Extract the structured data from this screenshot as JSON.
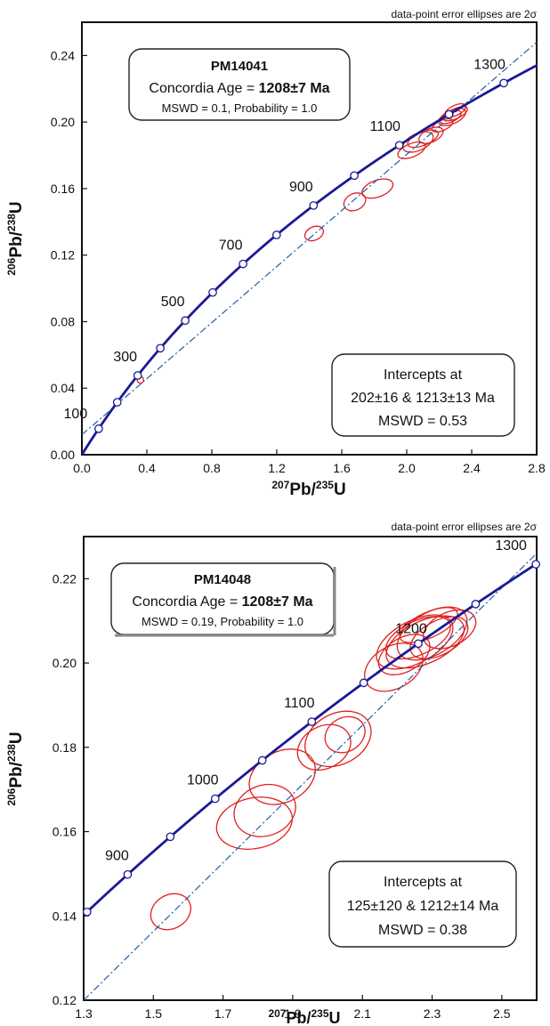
{
  "chart_data": [
    {
      "type": "concordia",
      "note": "data-point error ellipses are 2σ",
      "xlabel_mass": "207",
      "xlabel_el": "Pb/",
      "xlabel_mass2": "235",
      "xlabel_el2": "U",
      "ylabel_mass": "206",
      "ylabel_el": "Pb/",
      "ylabel_mass2": "238",
      "ylabel_el2": "U",
      "xlim": [
        0,
        2.8
      ],
      "ylim": [
        0,
        0.26
      ],
      "xticks": [
        0,
        0.4,
        0.8,
        1.2,
        1.6,
        2.0,
        2.4,
        2.8
      ],
      "xtick_labels": [
        "0.0",
        "0.4",
        "0.8",
        "1.2",
        "1.6",
        "2.0",
        "2.4",
        "2.8"
      ],
      "yticks": [
        0,
        0.04,
        0.08,
        0.12,
        0.16,
        0.2,
        0.24
      ],
      "ytick_labels": [
        "0.00",
        "0.04",
        "0.08",
        "0.12",
        "0.16",
        "0.20",
        "0.24"
      ],
      "concordia_ma": [
        0,
        1450
      ],
      "age_marks_ma": [
        100,
        200,
        300,
        400,
        500,
        600,
        700,
        800,
        900,
        1000,
        1100,
        1200,
        1300,
        1400
      ],
      "age_labels": [
        {
          "text": "100",
          "age": 100
        },
        {
          "text": "300",
          "age": 300
        },
        {
          "text": "500",
          "age": 500
        },
        {
          "text": "700",
          "age": 700
        },
        {
          "text": "900",
          "age": 900
        },
        {
          "text": "1100",
          "age": 1100
        },
        {
          "text": "1300",
          "age": 1300
        }
      ],
      "discordia": {
        "x": [
          0,
          2.8
        ],
        "y": [
          0.012,
          0.248
        ]
      },
      "ellipses": [
        {
          "x": 0.36,
          "y": 0.045,
          "rx": 0.02,
          "ry": 0.002,
          "angle": 25
        },
        {
          "x": 1.43,
          "y": 0.133,
          "rx": 0.06,
          "ry": 0.004,
          "angle": 25
        },
        {
          "x": 1.68,
          "y": 0.152,
          "rx": 0.07,
          "ry": 0.005,
          "angle": 25
        },
        {
          "x": 1.82,
          "y": 0.16,
          "rx": 0.1,
          "ry": 0.005,
          "angle": 20
        },
        {
          "x": 2.03,
          "y": 0.183,
          "rx": 0.09,
          "ry": 0.004,
          "angle": 22
        },
        {
          "x": 2.07,
          "y": 0.188,
          "rx": 0.1,
          "ry": 0.005,
          "angle": 25
        },
        {
          "x": 2.1,
          "y": 0.19,
          "rx": 0.1,
          "ry": 0.004,
          "angle": 22
        },
        {
          "x": 2.15,
          "y": 0.192,
          "rx": 0.08,
          "ry": 0.004,
          "angle": 25
        },
        {
          "x": 2.22,
          "y": 0.198,
          "rx": 0.07,
          "ry": 0.003,
          "angle": 25
        },
        {
          "x": 2.27,
          "y": 0.203,
          "rx": 0.07,
          "ry": 0.003,
          "angle": 25
        },
        {
          "x": 2.3,
          "y": 0.205,
          "rx": 0.08,
          "ry": 0.003,
          "angle": 25
        },
        {
          "x": 2.28,
          "y": 0.203,
          "rx": 0.09,
          "ry": 0.004,
          "angle": 25
        },
        {
          "x": 2.3,
          "y": 0.207,
          "rx": 0.07,
          "ry": 0.003,
          "angle": 25
        }
      ],
      "info_box": {
        "sample": "PM14041",
        "age_prefix": "Concordia Age = ",
        "age_value": "1208±7 Ma",
        "stats": "MSWD = 0.1, Probability = 1.0"
      },
      "intercept_box": {
        "line1": "Intercepts at",
        "line2": "202±16 & 1213±13 Ma",
        "line3": "MSWD = 0.53"
      },
      "colors": {
        "concordia": "#1a1a96",
        "discordia": "#1f5fa6",
        "ellipse": "#e02020"
      }
    },
    {
      "type": "concordia",
      "note": "data-point error ellipses are 2σ",
      "xlabel_mass": "207",
      "xlabel_el": "Pb/",
      "xlabel_mass2": "235",
      "xlabel_el2": "U",
      "ylabel_mass": "206",
      "ylabel_el": "Pb/",
      "ylabel_mass2": "238",
      "ylabel_el2": "U",
      "xlim": [
        1.3,
        2.6
      ],
      "ylim": [
        0.12,
        0.23
      ],
      "xticks": [
        1.3,
        1.5,
        1.7,
        1.9,
        2.1,
        2.3,
        2.5
      ],
      "xtick_labels": [
        "1.3",
        "1.5",
        "1.7",
        "1.9",
        "2.1",
        "2.3",
        "2.5"
      ],
      "yticks": [
        0.12,
        0.14,
        0.16,
        0.18,
        0.2,
        0.22
      ],
      "ytick_labels": [
        "0.12",
        "0.14",
        "0.16",
        "0.18",
        "0.20",
        "0.22"
      ],
      "concordia_ma": [
        830,
        1310
      ],
      "age_marks_ma": [
        850,
        900,
        950,
        1000,
        1050,
        1100,
        1150,
        1200,
        1250,
        1300
      ],
      "age_labels": [
        {
          "text": "900",
          "age": 900
        },
        {
          "text": "1000",
          "age": 1000
        },
        {
          "text": "1100",
          "age": 1100
        },
        {
          "text": "1200",
          "age": 1200
        },
        {
          "text": "1300",
          "age": 1300
        }
      ],
      "discordia": {
        "x": [
          1.3,
          2.6
        ],
        "y": [
          0.12,
          0.226
        ]
      },
      "ellipses": [
        {
          "x": 1.55,
          "y": 0.141,
          "rx": 0.06,
          "ry": 0.004,
          "angle": 30
        },
        {
          "x": 1.79,
          "y": 0.162,
          "rx": 0.11,
          "ry": 0.006,
          "angle": 12
        },
        {
          "x": 1.82,
          "y": 0.165,
          "rx": 0.09,
          "ry": 0.006,
          "angle": 20
        },
        {
          "x": 1.87,
          "y": 0.173,
          "rx": 0.1,
          "ry": 0.006,
          "angle": 28
        },
        {
          "x": 1.99,
          "y": 0.18,
          "rx": 0.08,
          "ry": 0.005,
          "angle": 28
        },
        {
          "x": 2.03,
          "y": 0.182,
          "rx": 0.1,
          "ry": 0.006,
          "angle": 28
        },
        {
          "x": 2.05,
          "y": 0.183,
          "rx": 0.06,
          "ry": 0.004,
          "angle": 30
        },
        {
          "x": 2.19,
          "y": 0.199,
          "rx": 0.09,
          "ry": 0.005,
          "angle": 30
        },
        {
          "x": 2.25,
          "y": 0.205,
          "rx": 0.12,
          "ry": 0.005,
          "angle": 28
        },
        {
          "x": 2.28,
          "y": 0.205,
          "rx": 0.12,
          "ry": 0.005,
          "angle": 25
        },
        {
          "x": 2.3,
          "y": 0.207,
          "rx": 0.11,
          "ry": 0.005,
          "angle": 30
        },
        {
          "x": 2.26,
          "y": 0.206,
          "rx": 0.1,
          "ry": 0.004,
          "angle": 25
        },
        {
          "x": 2.32,
          "y": 0.206,
          "rx": 0.09,
          "ry": 0.004,
          "angle": 28
        },
        {
          "x": 2.22,
          "y": 0.202,
          "rx": 0.08,
          "ry": 0.004,
          "angle": 30
        },
        {
          "x": 2.35,
          "y": 0.208,
          "rx": 0.08,
          "ry": 0.004,
          "angle": 25
        },
        {
          "x": 2.29,
          "y": 0.209,
          "rx": 0.09,
          "ry": 0.003,
          "angle": 25
        }
      ],
      "info_box": {
        "sample": "PM14048",
        "age_prefix": "Concordia Age = ",
        "age_value": "1208±7 Ma",
        "stats": "MSWD = 0.19, Probability = 1.0"
      },
      "intercept_box": {
        "line1": "Intercepts at",
        "line2": "125±120 & 1212±14 Ma",
        "line3": "MSWD = 0.38"
      },
      "colors": {
        "concordia": "#1a1a96",
        "discordia": "#1f5fa6",
        "ellipse": "#e02020"
      }
    }
  ]
}
